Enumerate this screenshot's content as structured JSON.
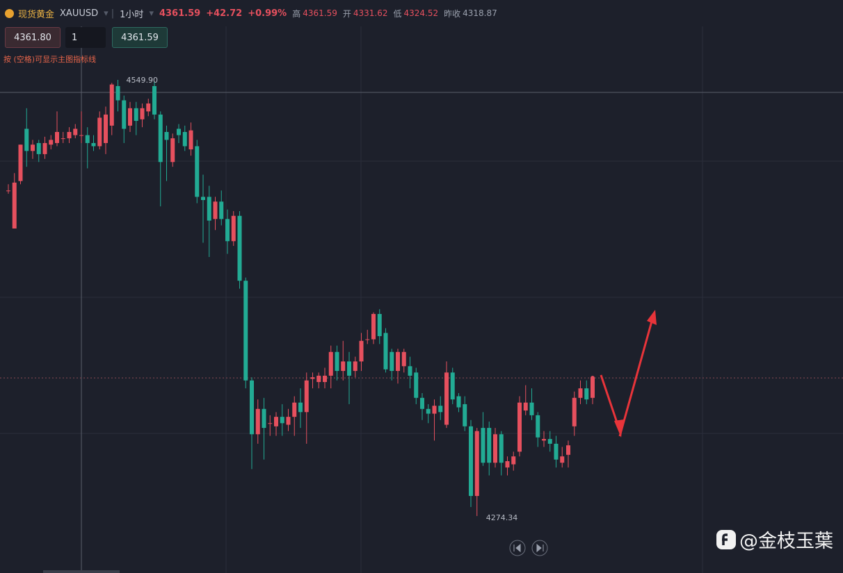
{
  "header": {
    "name": "现货黄金",
    "symbol": "XAUUSD",
    "interval": "1小时",
    "price": "4361.59",
    "change": "+42.72",
    "change_pct": "+0.99%",
    "stats": [
      {
        "label": "高",
        "value": "4361.59"
      },
      {
        "label": "开",
        "value": "4331.62"
      },
      {
        "label": "低",
        "value": "4324.52"
      },
      {
        "label": "昨收",
        "value": "4318.87"
      }
    ]
  },
  "controls": {
    "sell": "4361.80",
    "qty": "1",
    "buy": "4361.59",
    "hint": "按 (空格)可显示主图指标线"
  },
  "watermark": "@金枝玉葉",
  "chart_data": {
    "type": "candlestick",
    "open": [
      4480,
      4456,
      4486,
      4519,
      4505,
      4510,
      4503,
      4509,
      4510,
      4513,
      4513,
      4515,
      4515,
      4515,
      4510,
      4508,
      4510,
      4521,
      4546,
      4537,
      4521,
      4532,
      4525,
      4530,
      4546,
      4528,
      4517,
      4498,
      4519,
      4517,
      4506,
      4508,
      4476,
      4476,
      4462,
      4473,
      4462,
      4448,
      4464,
      4423,
      4360,
      4326,
      4342,
      4333,
      4331,
      4337,
      4332,
      4337,
      4346,
      4340,
      4361,
      4359,
      4359,
      4363,
      4378,
      4366,
      4372,
      4366,
      4372,
      4386,
      4386,
      4402,
      4390,
      4378,
      4366,
      4369,
      4369,
      4365,
      4349,
      4342,
      4339,
      4344,
      4332,
      4365,
      4350,
      4345,
      4331,
      4287,
      4330,
      4330,
      4308,
      4326,
      4305,
      4307,
      4315,
      4341,
      4346,
      4338,
      4322,
      4323,
      4320,
      4308,
      4313,
      4331,
      4349,
      4355,
      4349
    ],
    "high": [
      4484,
      4491,
      4509,
      4532,
      4512,
      4512,
      4514,
      4515,
      4530,
      4517,
      4520,
      4522,
      4530,
      4520,
      4515,
      4530,
      4533,
      4548,
      4549.9,
      4540,
      4536,
      4536,
      4535,
      4538,
      4549,
      4530,
      4521,
      4516,
      4522,
      4521,
      4523,
      4512,
      4490,
      4483,
      4476,
      4480,
      4468,
      4467,
      4467,
      4425,
      4362,
      4348,
      4349,
      4338,
      4340,
      4345,
      4342,
      4350,
      4355,
      4365,
      4365,
      4365,
      4368,
      4382,
      4382,
      4385,
      4378,
      4375,
      4390,
      4392,
      4403,
      4405,
      4393,
      4380,
      4380,
      4380,
      4375,
      4368,
      4352,
      4345,
      4348,
      4350,
      4372,
      4368,
      4352,
      4350,
      4335,
      4330,
      4340,
      4334,
      4330,
      4328,
      4312,
      4315,
      4350,
      4357,
      4355,
      4340,
      4328,
      4328,
      4325,
      4318,
      4322,
      4353,
      4360,
      4360,
      4361.59
    ],
    "low": [
      4478,
      4456,
      4484,
      4495,
      4500,
      4498,
      4500,
      4506,
      4508,
      4510,
      4510,
      4513,
      4510,
      4494,
      4505,
      4506,
      4503,
      4515,
      4530,
      4510,
      4517,
      4515,
      4520,
      4527,
      4525,
      4470,
      4486,
      4495,
      4510,
      4505,
      4502,
      4472,
      4447,
      4438,
      4455,
      4458,
      4440,
      4445,
      4418,
      4355,
      4304,
      4320,
      4310,
      4325,
      4325,
      4325,
      4328,
      4325,
      4330,
      4320,
      4355,
      4355,
      4355,
      4355,
      4360,
      4360,
      4345,
      4362,
      4366,
      4383,
      4383,
      4383,
      4365,
      4360,
      4358,
      4365,
      4355,
      4345,
      4335,
      4333,
      4322,
      4335,
      4330,
      4345,
      4340,
      4328,
      4280,
      4274.34,
      4306,
      4300,
      4305,
      4300,
      4300,
      4303,
      4312,
      4338,
      4335,
      4318,
      4318,
      4315,
      4305,
      4305,
      4305,
      4325,
      4345,
      4345,
      4345
    ],
    "close": [
      4480,
      4485,
      4509,
      4505,
      4509,
      4503,
      4510,
      4512,
      4517,
      4513,
      4517,
      4519,
      4515,
      4510,
      4508,
      4526,
      4528,
      4547,
      4537,
      4519,
      4532,
      4524,
      4532,
      4535,
      4528,
      4498,
      4512,
      4513,
      4515,
      4508,
      4518,
      4476,
      4474,
      4461,
      4473,
      4462,
      4448,
      4464,
      4423,
      4360,
      4326,
      4342,
      4330,
      4333,
      4337,
      4333,
      4337,
      4346,
      4340,
      4360,
      4362,
      4363,
      4363,
      4378,
      4366,
      4372,
      4363,
      4372,
      4385,
      4386,
      4402,
      4388,
      4367,
      4366,
      4378,
      4378,
      4363,
      4349,
      4342,
      4339,
      4344,
      4340,
      4365,
      4348,
      4343,
      4331,
      4287,
      4328,
      4308,
      4308,
      4326,
      4308,
      4309,
      4312,
      4346,
      4346,
      4338,
      4324,
      4323,
      4320,
      4310,
      4312,
      4319,
      4349,
      4355,
      4348,
      4361.59
    ],
    "last": 4361.59,
    "max_label": "4549.90",
    "min_label": "4274.34",
    "ylim": [
      4249.3,
      4556.5
    ],
    "up_color": "#e6505e",
    "down_color": "#22ab94"
  }
}
